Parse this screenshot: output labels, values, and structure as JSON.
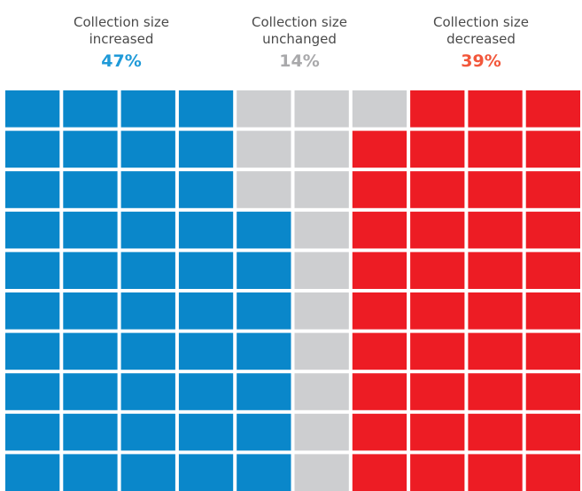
{
  "chart_data": {
    "type": "waffle",
    "rows": 10,
    "columns": 10,
    "series": [
      {
        "name": "Collection size increased",
        "color": "#0a87ca",
        "label_color": "#1f9ad8",
        "values": [
          47
        ],
        "value_labels": [
          "47%"
        ]
      },
      {
        "name": "Collection size unchanged",
        "color": "#cdced0",
        "label_color": "#a9a9ab",
        "values": [
          14
        ],
        "value_labels": [
          "14%"
        ]
      },
      {
        "name": "Collection size decreased",
        "color": "#ed1c24",
        "label_color": "#f2573b",
        "values": [
          39
        ],
        "value_labels": [
          "39%"
        ]
      }
    ]
  }
}
